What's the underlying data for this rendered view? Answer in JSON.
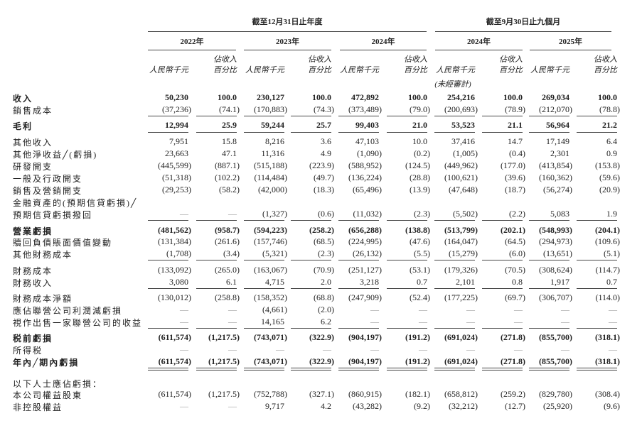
{
  "header": {
    "group_annual": "截至12月31日止年度",
    "group_nine_months": "截至9月30日止九個月",
    "years": [
      "2022年",
      "2023年",
      "2024年",
      "2024年",
      "2025年"
    ],
    "amount_unit": "人民幣千元",
    "pct_label_line1": "佔收入",
    "pct_label_line2": "百分比",
    "unaudited": "(未經審計)"
  },
  "rows": [
    {
      "label": "收入",
      "values": [
        "50,230",
        "100.0",
        "230,127",
        "100.0",
        "472,892",
        "100.0",
        "254,216",
        "100.0",
        "269,034",
        "100.0"
      ]
    },
    {
      "label": "銷售成本",
      "values": [
        "(37,236)",
        "(74.1)",
        "(170,883)",
        "(74.3)",
        "(373,489)",
        "(79.0)",
        "(200,693)",
        "(78.9)",
        "(212,070)",
        "(78.8)"
      ]
    },
    {
      "label": "毛利",
      "values": [
        "12,994",
        "25.9",
        "59,244",
        "25.7",
        "99,403",
        "21.0",
        "53,523",
        "21.1",
        "56,964",
        "21.2"
      ]
    },
    {
      "label": "其他收入",
      "values": [
        "7,951",
        "15.8",
        "8,216",
        "3.6",
        "47,103",
        "10.0",
        "37,416",
        "14.7",
        "17,149",
        "6.4"
      ]
    },
    {
      "label": "其他淨收益╱(虧損)",
      "values": [
        "23,663",
        "47.1",
        "11,316",
        "4.9",
        "(1,090)",
        "(0.2)",
        "(1,005)",
        "(0.4)",
        "2,301",
        "0.9"
      ]
    },
    {
      "label": "研發開支",
      "values": [
        "(445,599)",
        "(887.1)",
        "(515,188)",
        "(223.9)",
        "(588,952)",
        "(124.5)",
        "(449,962)",
        "(177.0)",
        "(413,854)",
        "(153.8)"
      ]
    },
    {
      "label": "一般及行政開支",
      "values": [
        "(51,318)",
        "(102.2)",
        "(114,484)",
        "(49.7)",
        "(136,224)",
        "(28.8)",
        "(100,621)",
        "(39.6)",
        "(160,362)",
        "(59.6)"
      ]
    },
    {
      "label": "銷售及營銷開支",
      "values": [
        "(29,253)",
        "(58.2)",
        "(42,000)",
        "(18.3)",
        "(65,496)",
        "(13.9)",
        "(47,648)",
        "(18.7)",
        "(56,274)",
        "(20.9)"
      ]
    },
    {
      "label": "金融資產的(預期信貸虧損)╱",
      "values": []
    },
    {
      "label": " 預期信貸虧損撥回",
      "values": [
        "—",
        "—",
        "(1,327)",
        "(0.6)",
        "(11,032)",
        "(2.3)",
        "(5,502)",
        "(2.2)",
        "5,083",
        "1.9"
      ]
    },
    {
      "label": "營業虧損",
      "values": [
        "(481,562)",
        "(958.7)",
        "(594,223)",
        "(258.2)",
        "(656,288)",
        "(138.8)",
        "(513,799)",
        "(202.1)",
        "(548,993)",
        "(204.1)"
      ]
    },
    {
      "label": "贖回負債賬面價值變動",
      "values": [
        "(131,384)",
        "(261.6)",
        "(157,746)",
        "(68.5)",
        "(224,995)",
        "(47.6)",
        "(164,047)",
        "(64.5)",
        "(294,973)",
        "(109.6)"
      ]
    },
    {
      "label": "其他財務成本",
      "values": [
        "(1,708)",
        "(3.4)",
        "(5,321)",
        "(2.3)",
        "(26,132)",
        "(5.5)",
        "(15,279)",
        "(6.0)",
        "(13,651)",
        "(5.1)"
      ]
    },
    {
      "label": "財務成本",
      "values": [
        "(133,092)",
        "(265.0)",
        "(163,067)",
        "(70.9)",
        "(251,127)",
        "(53.1)",
        "(179,326)",
        "(70.5)",
        "(308,624)",
        "(114.7)"
      ]
    },
    {
      "label": "財務收入",
      "values": [
        "3,080",
        "6.1",
        "4,715",
        "2.0",
        "3,218",
        "0.7",
        "2,101",
        "0.8",
        "1,917",
        "0.7"
      ]
    },
    {
      "label": "財務成本淨額",
      "values": [
        "(130,012)",
        "(258.8)",
        "(158,352)",
        "(68.8)",
        "(247,909)",
        "(52.4)",
        "(177,225)",
        "(69.7)",
        "(306,707)",
        "(114.0)"
      ]
    },
    {
      "label": "應佔聯營公司利潤減虧損",
      "values": [
        "—",
        "—",
        "(4,661)",
        "(2.0)",
        "—",
        "—",
        "—",
        "—",
        "—",
        "—"
      ]
    },
    {
      "label": "視作出售一家聯營公司的收益",
      "values": [
        "—",
        "—",
        "14,165",
        "6.2",
        "—",
        "—",
        "—",
        "—",
        "—",
        "—"
      ]
    },
    {
      "label": "税前虧損",
      "values": [
        "(611,574)",
        "(1,217.5)",
        "(743,071)",
        "(322.9)",
        "(904,197)",
        "(191.2)",
        "(691,024)",
        "(271.8)",
        "(855,700)",
        "(318.1)"
      ]
    },
    {
      "label": "所得税",
      "values": [
        "—",
        "—",
        "—",
        "—",
        "—",
        "—",
        "—",
        "—",
        "—",
        "—"
      ]
    },
    {
      "label": "年內╱期內虧損",
      "values": [
        "(611,574)",
        "(1,217.5)",
        "(743,071)",
        "(322.9)",
        "(904,197)",
        "(191.2)",
        "(691,024)",
        "(271.8)",
        "(855,700)",
        "(318.1)"
      ]
    },
    {
      "label": "以下人士應佔虧損：",
      "values": []
    },
    {
      "label": "本公司權益股東",
      "values": [
        "(611,574)",
        "(1,217.5)",
        "(752,788)",
        "(327.1)",
        "(860,915)",
        "(182.1)",
        "(658,812)",
        "(259.2)",
        "(829,780)",
        "(308.4)"
      ]
    },
    {
      "label": "非控股權益",
      "values": [
        "—",
        "—",
        "9,717",
        "4.2",
        "(43,282)",
        "(9.2)",
        "(32,212)",
        "(12.7)",
        "(25,920)",
        "(9.6)"
      ]
    }
  ]
}
